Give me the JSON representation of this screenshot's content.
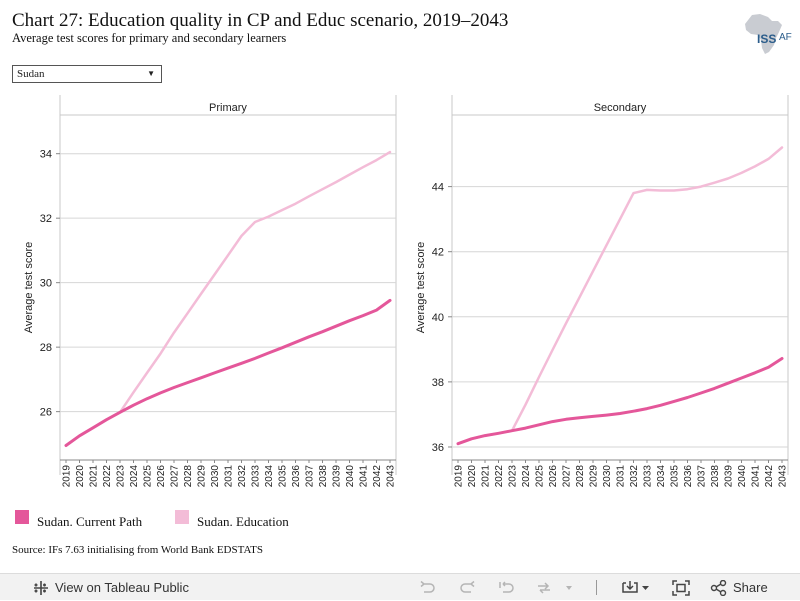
{
  "header": {
    "title": "Chart 27: Education quality in CP and Educ scenario, 2019–2043",
    "subtitle": "Average test scores for primary and secondary learners"
  },
  "logo": {
    "text": "ISS",
    "suffix": "AF"
  },
  "filter": {
    "selected": "Sudan"
  },
  "chart_data": {
    "type": "line",
    "x": [
      2019,
      2020,
      2021,
      2022,
      2023,
      2024,
      2025,
      2026,
      2027,
      2028,
      2029,
      2030,
      2031,
      2032,
      2033,
      2034,
      2035,
      2036,
      2037,
      2038,
      2039,
      2040,
      2041,
      2042,
      2043
    ],
    "xlabel": "",
    "ylabel": "Average test score",
    "legend_position": "bottom-left",
    "grid": true,
    "colors": {
      "Sudan. Current Path": "#e4579a",
      "Sudan. Education": "#f3bcd7"
    },
    "panels": [
      {
        "title": "Primary",
        "ylim": [
          24.5,
          35.2
        ],
        "yticks": [
          26,
          28,
          30,
          32,
          34
        ],
        "series": [
          {
            "name": "Sudan. Current Path",
            "values": [
              24.95,
              25.25,
              25.5,
              25.75,
              25.98,
              26.2,
              26.4,
              26.58,
              26.75,
              26.9,
              27.05,
              27.2,
              27.35,
              27.5,
              27.65,
              27.82,
              27.98,
              28.15,
              28.32,
              28.48,
              28.65,
              28.82,
              28.98,
              29.15,
              29.45
            ]
          },
          {
            "name": "Sudan. Education",
            "values": [
              24.95,
              25.25,
              25.5,
              25.75,
              25.98,
              26.6,
              27.2,
              27.8,
              28.45,
              29.05,
              29.65,
              30.25,
              30.85,
              31.45,
              31.88,
              32.05,
              32.25,
              32.45,
              32.68,
              32.9,
              33.12,
              33.35,
              33.58,
              33.8,
              34.05
            ]
          }
        ]
      },
      {
        "title": "Secondary",
        "ylim": [
          35.6,
          46.2
        ],
        "yticks": [
          36,
          38,
          40,
          42,
          44
        ],
        "series": [
          {
            "name": "Sudan. Current Path",
            "values": [
              36.1,
              36.25,
              36.35,
              36.42,
              36.5,
              36.58,
              36.68,
              36.78,
              36.85,
              36.9,
              36.94,
              36.98,
              37.03,
              37.1,
              37.18,
              37.28,
              37.4,
              37.52,
              37.66,
              37.8,
              37.96,
              38.12,
              38.28,
              38.45,
              38.72
            ]
          },
          {
            "name": "Sudan. Education",
            "values": [
              36.1,
              36.25,
              36.35,
              36.42,
              36.5,
              37.3,
              38.15,
              38.98,
              39.8,
              40.6,
              41.4,
              42.2,
              43.0,
              43.8,
              43.9,
              43.88,
              43.88,
              43.92,
              44.0,
              44.12,
              44.25,
              44.42,
              44.62,
              44.85,
              45.2
            ]
          }
        ]
      }
    ]
  },
  "legend": [
    {
      "label": "Sudan. Current Path",
      "color": "#e4579a"
    },
    {
      "label": "Sudan. Education",
      "color": "#f3bcd7"
    }
  ],
  "source": "Source: IFs 7.63 initialising from World Bank EDSTATS",
  "toolbar": {
    "view_label": "View on Tableau Public",
    "share_label": "Share",
    "icons": [
      "tableau-logo-icon",
      "undo-icon",
      "redo-icon",
      "revert-icon",
      "refresh-icon",
      "download-icon",
      "fullscreen-icon",
      "share-icon"
    ]
  }
}
